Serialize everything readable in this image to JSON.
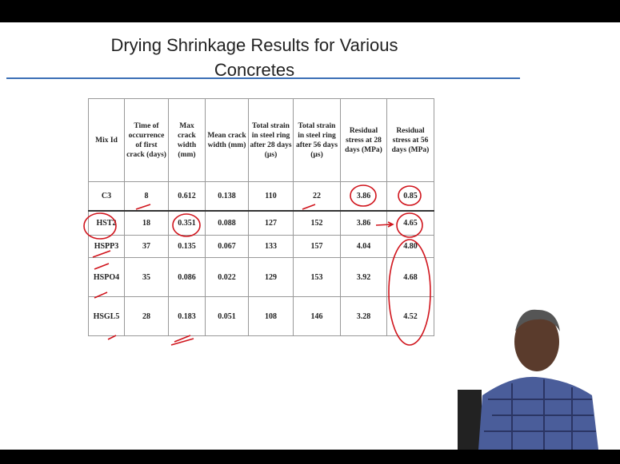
{
  "slide": {
    "title_lines": [
      "Drying Shrinkage Results for Various",
      "Concretes"
    ]
  },
  "table": {
    "headers": [
      "Mix Id",
      "Time of occurrence of first crack (days)",
      "Max crack width (mm)",
      "Mean crack width (mm)",
      "Total strain in steel ring after 28 days (µs)",
      "Total strain in steel ring after 56 days (µs)",
      "Residual stress at 28 days (MPa)",
      "Residual stress at 56 days (MPa)"
    ],
    "rows": [
      [
        "C3",
        "8",
        "0.612",
        "0.138",
        "110",
        "22",
        "3.86",
        "0.85"
      ],
      [
        "HST2",
        "18",
        "0.351",
        "0.088",
        "127",
        "152",
        "3.86",
        "4.65"
      ],
      [
        "HSPP3",
        "37",
        "0.135",
        "0.067",
        "133",
        "157",
        "4.04",
        "4.80"
      ],
      [
        "HSPO4",
        "35",
        "0.086",
        "0.022",
        "129",
        "153",
        "3.92",
        "4.68"
      ],
      [
        "HSGL5",
        "28",
        "0.183",
        "0.051",
        "108",
        "146",
        "3.28",
        "4.52"
      ]
    ]
  }
}
